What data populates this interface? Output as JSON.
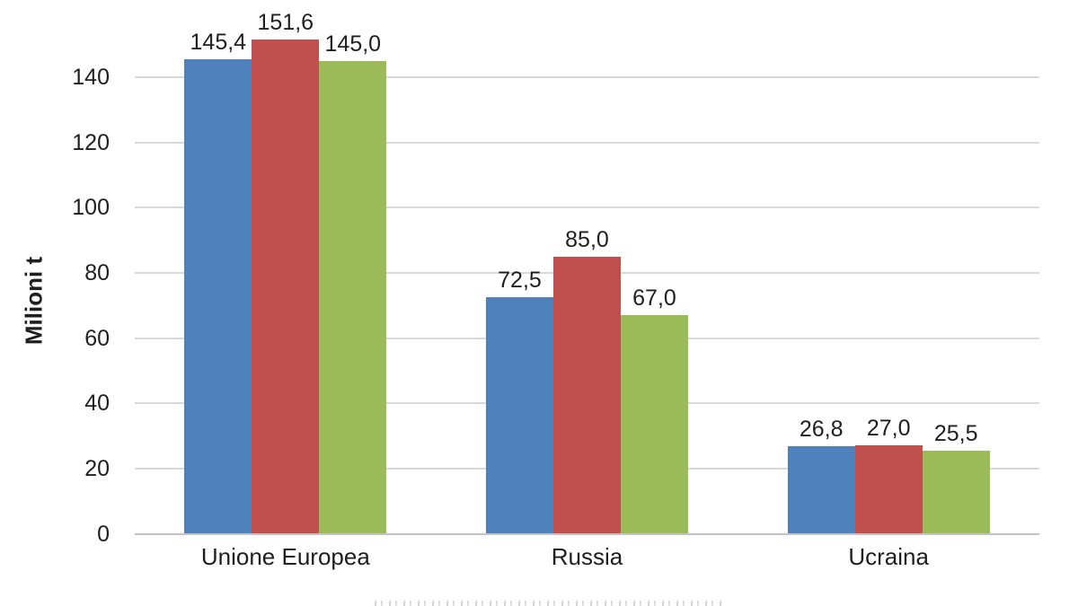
{
  "chart_data": {
    "type": "bar",
    "title": "",
    "xlabel": "",
    "ylabel": "Milioni t",
    "categories": [
      "Unione Europea",
      "Russia",
      "Ucraina"
    ],
    "series": [
      {
        "id": "series-1-blue",
        "color": "#4F81BD",
        "values": [
          145.4,
          72.5,
          26.8
        ],
        "labels": [
          "145,4",
          "72,5",
          "26,8"
        ]
      },
      {
        "id": "series-2-red",
        "color": "#C0504D",
        "values": [
          151.6,
          85.0,
          27.0
        ],
        "labels": [
          "151,6",
          "85,0",
          "27,0"
        ]
      },
      {
        "id": "series-3-green",
        "color": "#9BBB59",
        "values": [
          145.0,
          67.0,
          25.5
        ],
        "labels": [
          "145,0",
          "67,0",
          "25,5"
        ]
      }
    ],
    "yticks": [
      0,
      20,
      40,
      60,
      80,
      100,
      120,
      140
    ],
    "ylim": [
      0,
      155
    ],
    "grid": true,
    "decimal_separator": ",",
    "legend_position": "bottom-cropped"
  },
  "colors": {
    "background": "#FFFFFF",
    "gridline": "#D9D9D9",
    "axis_line": "#C3C3C3",
    "text": "#1F1F1F"
  }
}
